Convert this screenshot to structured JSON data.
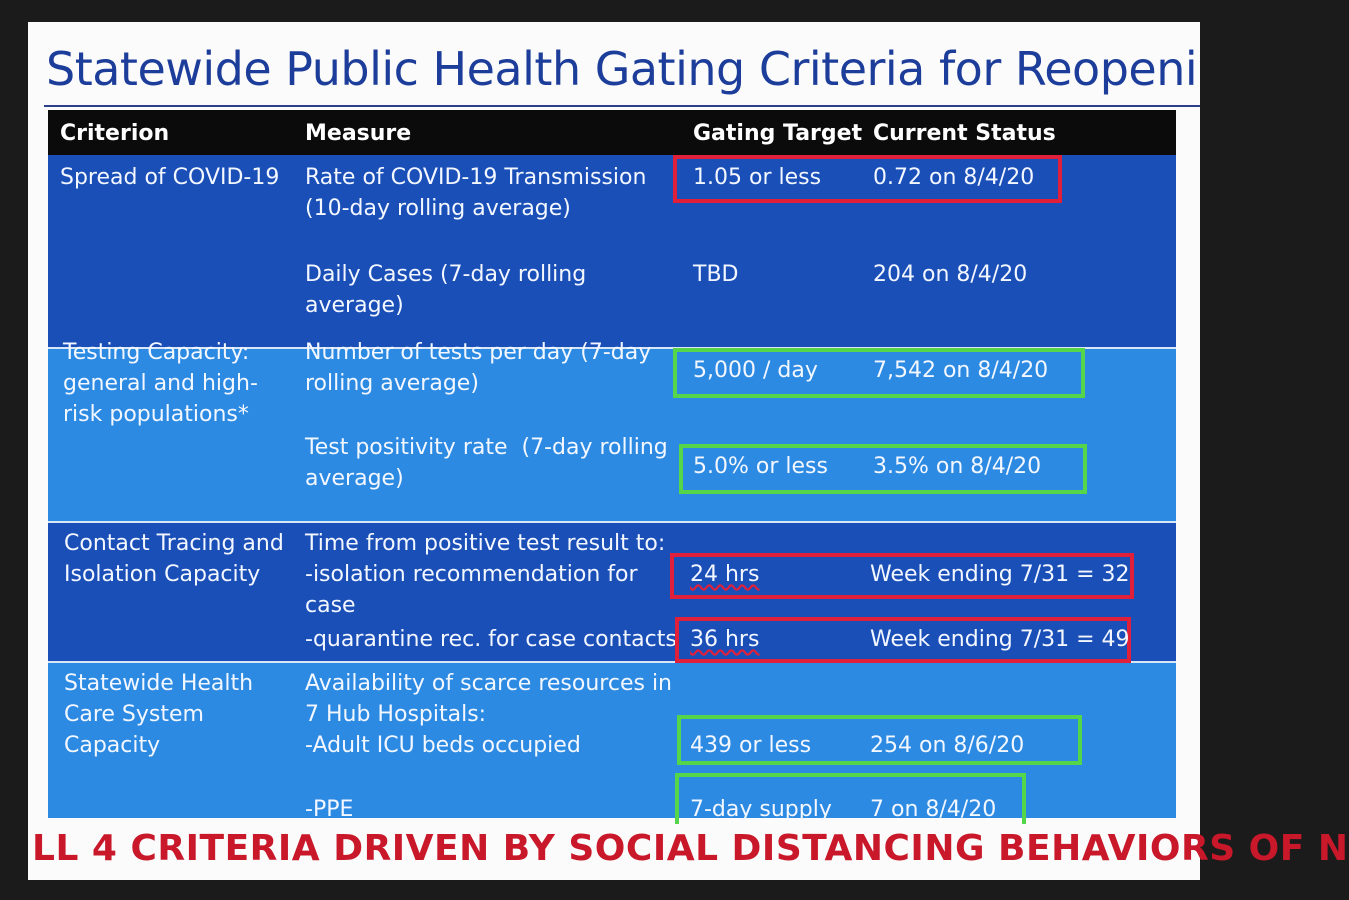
{
  "slide": {
    "title": "Statewide Public Health Gating Criteria for Reopeni",
    "footer": "LL 4 CRITERIA DRIVEN BY SOCIAL DISTANCING BEHAVIORS OF N"
  },
  "table": {
    "headers": {
      "criterion": "Criterion",
      "measure": "Measure",
      "target": "Gating Target",
      "status": "Current Status"
    },
    "rows": [
      {
        "criterion": "Spread of COVID-19",
        "measure": "Rate of COVID-19 Transmission\n(10-day rolling average)",
        "target": "1.05 or less",
        "status": "0.72 on 8/4/20",
        "highlight": "red"
      },
      {
        "criterion": "",
        "measure": "Daily Cases (7-day rolling\naverage)",
        "target": "TBD",
        "status": "204 on 8/4/20",
        "highlight": "none"
      },
      {
        "criterion": "Testing Capacity:\ngeneral and high-\nrisk populations*",
        "measure": "Number of tests per day (7-day\nrolling average)",
        "target": "5,000 / day",
        "status": "7,542 on 8/4/20",
        "highlight": "green"
      },
      {
        "criterion": "",
        "measure": "Test positivity rate  (7-day rolling\naverage)",
        "target": "5.0% or less",
        "status": "3.5% on 8/4/20",
        "highlight": "green"
      },
      {
        "criterion": "Contact Tracing and\nIsolation Capacity",
        "measure": "Time from positive test result to:\n-isolation recommendation for\ncase",
        "target": "24 hrs",
        "status": "Week ending 7/31 = 32",
        "highlight": "red"
      },
      {
        "criterion": "",
        "measure": "-quarantine rec. for case contacts",
        "target": "36 hrs",
        "status": "Week ending 7/31 = 49",
        "highlight": "red"
      },
      {
        "criterion": "Statewide Health\nCare System\nCapacity",
        "measure": "Availability of scarce resources in\n7 Hub Hospitals:\n-Adult ICU beds occupied",
        "target": "439 or less",
        "status": "254 on 8/6/20",
        "highlight": "green"
      },
      {
        "criterion": "",
        "measure": "-PPE",
        "target": "7-day supply",
        "status": "7 on 8/4/20",
        "highlight": "green"
      }
    ]
  },
  "colors": {
    "title": "#1d3d9b",
    "header_bg": "#0b0b0b",
    "band_dark": "#1b4fb8",
    "band_light": "#2c8ae2",
    "highlight_red": "#e0203a",
    "highlight_green": "#55d64a",
    "footer_text": "#c8182a"
  }
}
